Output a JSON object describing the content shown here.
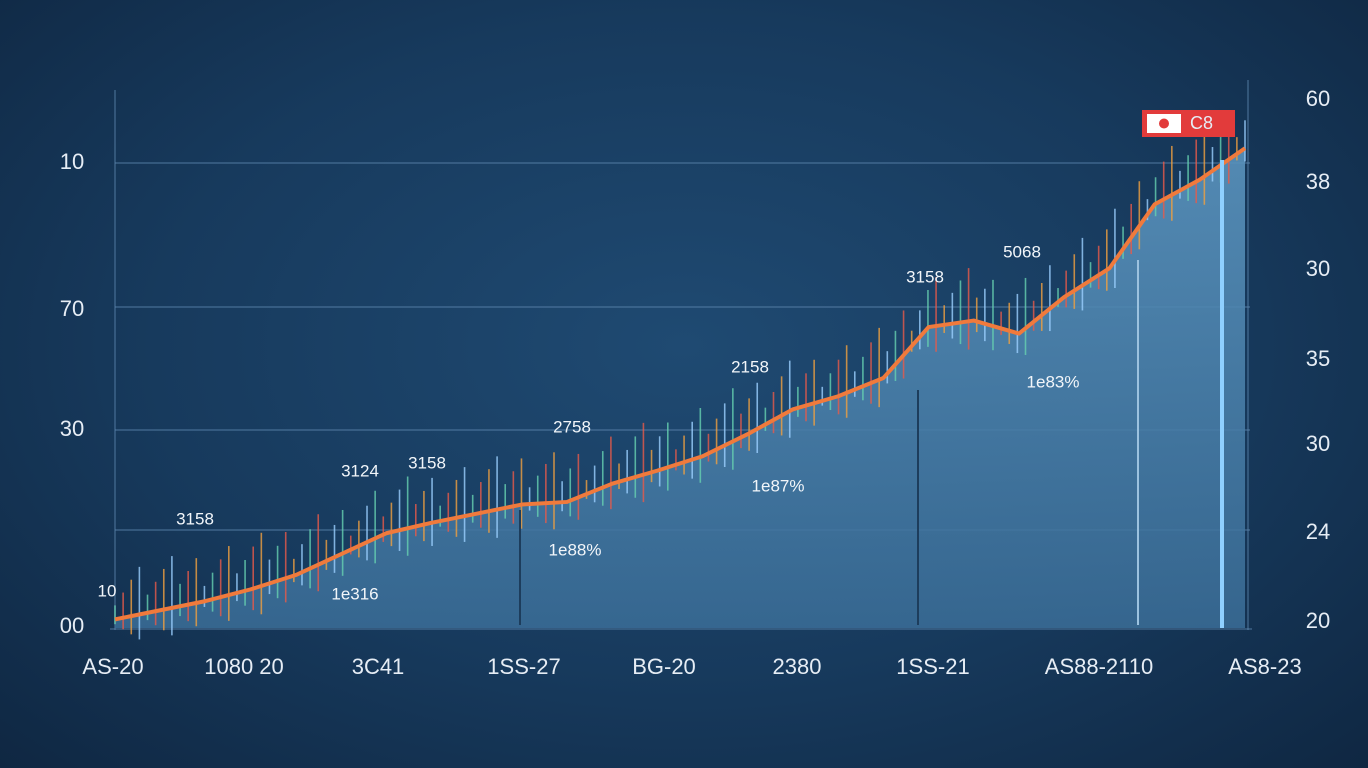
{
  "chart_data": {
    "type": "area",
    "legend": "C8",
    "left_axis_labels": [
      "10",
      "70",
      "30",
      "00"
    ],
    "right_axis_labels": [
      "60",
      "38",
      "30",
      "35",
      "30",
      "24",
      "20"
    ],
    "x_labels": [
      "AS-20",
      "1080 20",
      "3C41",
      "1SS-27",
      "BG-20",
      "2380",
      "1SS-21",
      "AS88-2110",
      "AS8-23"
    ],
    "annotations": [
      "3158",
      "10",
      "1e316",
      "3124",
      "3158",
      "1e88%",
      "2758",
      "2158",
      "1e87%",
      "3158",
      "5068",
      "1e83%"
    ],
    "ylim": [
      20,
      60
    ],
    "values": [
      20.2,
      20.9,
      21.6,
      22.5,
      23.6,
      25.2,
      26.8,
      27.6,
      28.3,
      29.0,
      29.2,
      30.6,
      31.6,
      32.7,
      34.4,
      36.3,
      37.3,
      38.7,
      42.6,
      43.1,
      42.1,
      44.9,
      47.1,
      52.0,
      53.9,
      56.3
    ],
    "line_color": "#f07a3c",
    "area_color": "#4a82ad",
    "legend_color": "#e23b3b"
  }
}
